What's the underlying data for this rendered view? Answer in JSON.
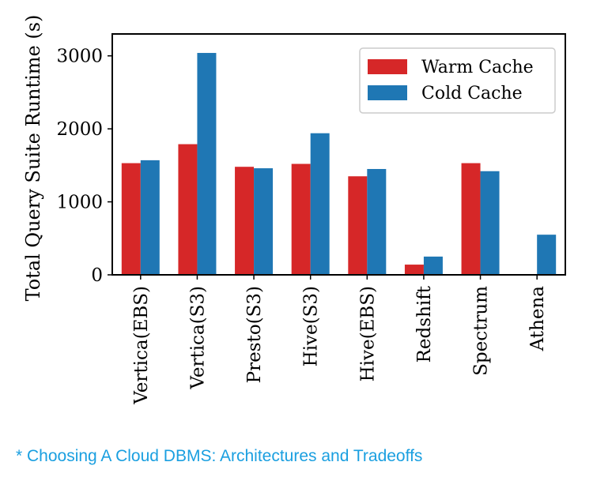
{
  "chart_data": {
    "type": "bar",
    "title": "",
    "xlabel": "",
    "ylabel": "Total Query Suite Runtime (s)",
    "ylim": [
      0,
      3300
    ],
    "yticks": [
      0,
      1000,
      2000,
      3000
    ],
    "categories": [
      "Vertica(EBS)",
      "Vertica(S3)",
      "Presto(S3)",
      "Hive(S3)",
      "Hive(EBS)",
      "Redshift",
      "Spectrum",
      "Athena"
    ],
    "series": [
      {
        "name": "Warm Cache",
        "color": "#d62728",
        "values": [
          1530,
          1790,
          1480,
          1520,
          1350,
          140,
          1530,
          0
        ]
      },
      {
        "name": "Cold Cache",
        "color": "#1f77b4",
        "values": [
          1570,
          3040,
          1460,
          1940,
          1450,
          250,
          1420,
          550
        ]
      }
    ],
    "legend": "top-right"
  },
  "caption": "* Choosing A Cloud DBMS: Architectures and Tradeoffs"
}
